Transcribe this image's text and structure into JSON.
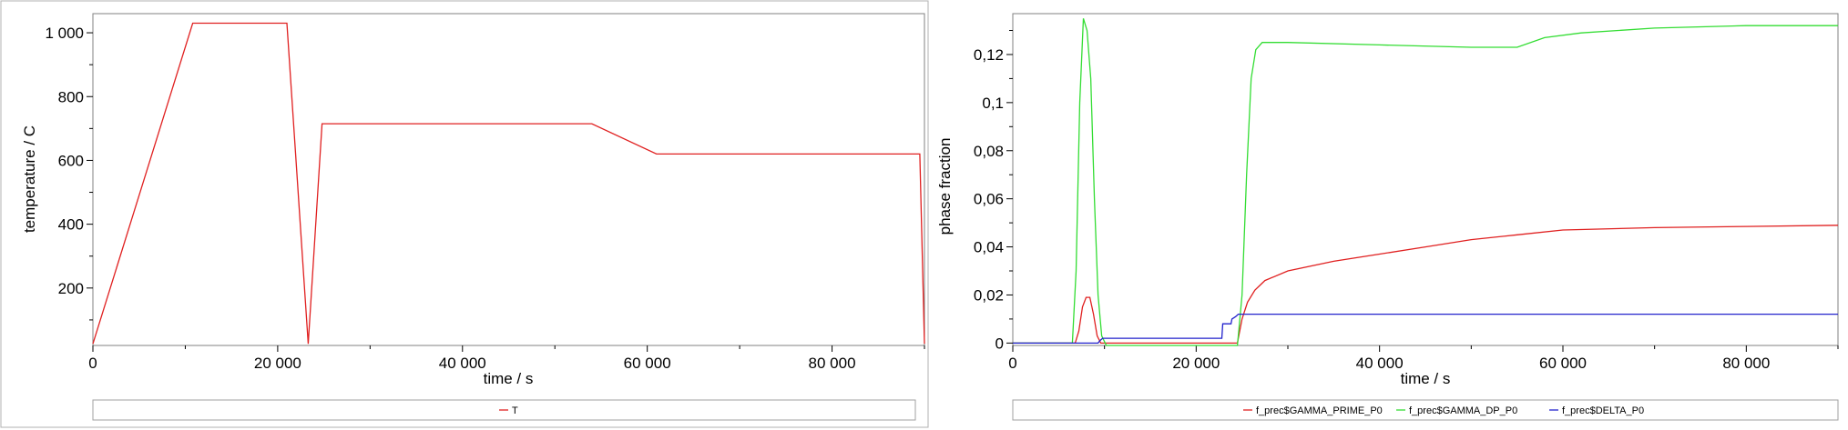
{
  "chart_data": [
    {
      "type": "line",
      "xlabel": "time / s",
      "ylabel": "temperature / C",
      "xlim": [
        0,
        90000
      ],
      "ylim": [
        20,
        1060
      ],
      "x_ticks": [
        0,
        20000,
        40000,
        60000,
        80000
      ],
      "x_tick_labels": [
        "0",
        "20 000",
        "40 000",
        "60 000",
        "80 000"
      ],
      "y_ticks": [
        200,
        400,
        600,
        800,
        1000
      ],
      "y_tick_labels": [
        "200",
        "400",
        "600",
        "800",
        "1 000"
      ],
      "legend_position": "bottom",
      "series": [
        {
          "name": "T",
          "color": "#e02020",
          "points": [
            [
              0,
              25
            ],
            [
              10800,
              1030
            ],
            [
              21000,
              1030
            ],
            [
              23300,
              25
            ],
            [
              24800,
              715
            ],
            [
              54000,
              715
            ],
            [
              61000,
              620
            ],
            [
              89500,
              620
            ],
            [
              90000,
              25
            ]
          ]
        }
      ]
    },
    {
      "type": "line",
      "xlabel": "time / s",
      "ylabel": "phase fraction",
      "xlim": [
        0,
        90000
      ],
      "ylim": [
        -0.001,
        0.137
      ],
      "x_ticks": [
        0,
        20000,
        40000,
        60000,
        80000
      ],
      "x_tick_labels": [
        "0",
        "20 000",
        "40 000",
        "60 000",
        "80 000"
      ],
      "y_ticks": [
        0,
        0.02,
        0.04,
        0.06,
        0.08,
        0.1,
        0.12
      ],
      "y_tick_labels": [
        "0",
        "0,02",
        "0,04",
        "0,06",
        "0,08",
        "0,1",
        "0,12"
      ],
      "legend_position": "bottom",
      "series": [
        {
          "name": "f_prec$GAMMA_PRIME_P0",
          "color": "#e02020",
          "points": [
            [
              0,
              0
            ],
            [
              6800,
              0
            ],
            [
              7200,
              0.005
            ],
            [
              7600,
              0.015
            ],
            [
              8000,
              0.019
            ],
            [
              8400,
              0.019
            ],
            [
              8800,
              0.012
            ],
            [
              9200,
              0.003
            ],
            [
              9600,
              0
            ],
            [
              24500,
              0
            ],
            [
              25000,
              0.01
            ],
            [
              25600,
              0.017
            ],
            [
              26400,
              0.022
            ],
            [
              27500,
              0.026
            ],
            [
              30000,
              0.03
            ],
            [
              35000,
              0.034
            ],
            [
              40000,
              0.037
            ],
            [
              45000,
              0.04
            ],
            [
              50000,
              0.043
            ],
            [
              55000,
              0.045
            ],
            [
              60000,
              0.047
            ],
            [
              70000,
              0.048
            ],
            [
              80000,
              0.0485
            ],
            [
              90000,
              0.049
            ]
          ]
        },
        {
          "name": "f_prec$GAMMA_DP_P0",
          "color": "#33dd33",
          "points": [
            [
              0,
              0
            ],
            [
              6500,
              0
            ],
            [
              6900,
              0.03
            ],
            [
              7300,
              0.1
            ],
            [
              7700,
              0.135
            ],
            [
              8100,
              0.13
            ],
            [
              8500,
              0.11
            ],
            [
              8900,
              0.06
            ],
            [
              9300,
              0.02
            ],
            [
              9700,
              0.003
            ],
            [
              10200,
              -0.001
            ],
            [
              24500,
              -0.001
            ],
            [
              25000,
              0.02
            ],
            [
              25500,
              0.07
            ],
            [
              26000,
              0.11
            ],
            [
              26500,
              0.122
            ],
            [
              27200,
              0.125
            ],
            [
              30000,
              0.125
            ],
            [
              40000,
              0.124
            ],
            [
              50000,
              0.123
            ],
            [
              55000,
              0.123
            ],
            [
              58000,
              0.127
            ],
            [
              62000,
              0.129
            ],
            [
              70000,
              0.131
            ],
            [
              80000,
              0.132
            ],
            [
              90000,
              0.132
            ]
          ]
        },
        {
          "name": "f_prec$DELTA_P0",
          "color": "#2222cc",
          "points": [
            [
              0,
              0
            ],
            [
              9300,
              0
            ],
            [
              9500,
              0.001
            ],
            [
              9800,
              0.002
            ],
            [
              22800,
              0.002
            ],
            [
              22900,
              0.008
            ],
            [
              23800,
              0.008
            ],
            [
              23900,
              0.01
            ],
            [
              24300,
              0.011
            ],
            [
              24600,
              0.012
            ],
            [
              90000,
              0.012
            ]
          ]
        }
      ]
    }
  ]
}
